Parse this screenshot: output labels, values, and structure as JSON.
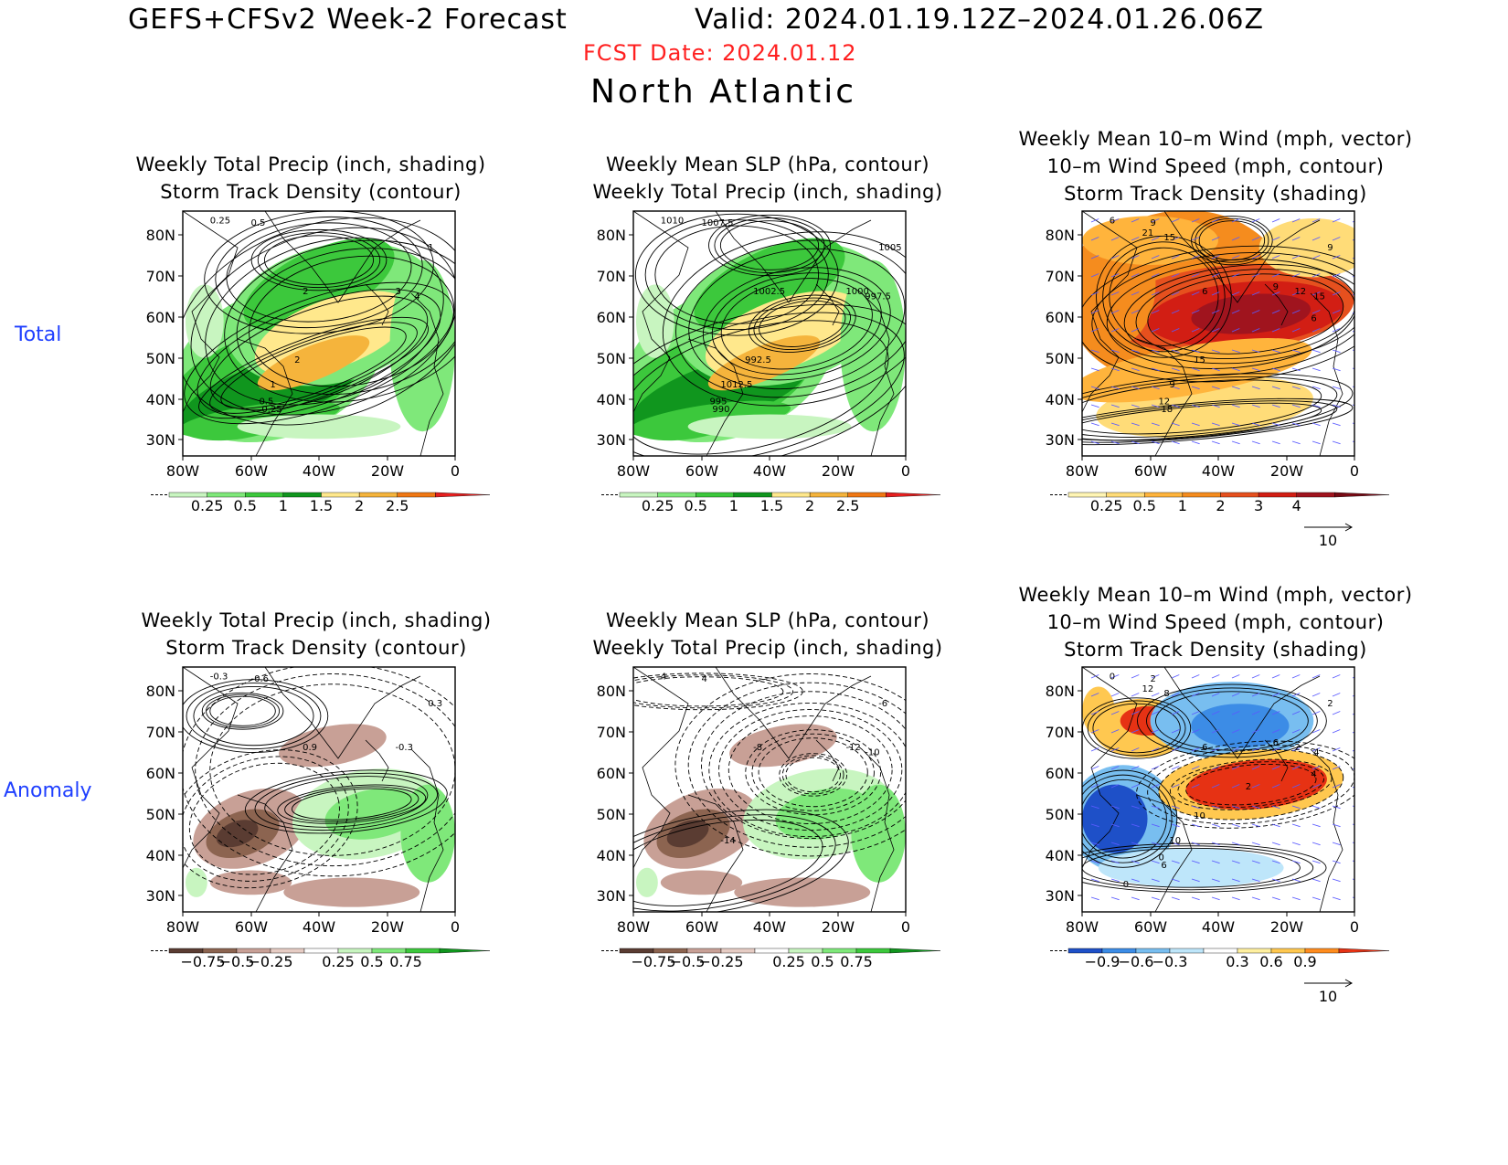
{
  "header": {
    "title": "GEFS+CFSv2 Week-2 Forecast",
    "valid": "Valid: 2024.01.19.12Z–2024.01.26.06Z",
    "fcst_date": "FCST Date: 2024.01.12",
    "region": "North Atlantic"
  },
  "rows": {
    "total": "Total",
    "anomaly": "Anomaly"
  },
  "axes": {
    "lat_ticks": [
      "80N",
      "70N",
      "60N",
      "50N",
      "40N",
      "30N"
    ],
    "lon_ticks": [
      "80W",
      "60W",
      "40W",
      "20W",
      "0"
    ]
  },
  "panels": [
    {
      "id": "total-precip",
      "title1": "Weekly Total Precip (inch, shading)",
      "title2": "Storm Track Density (contour)",
      "scheme": "precip",
      "contour_labels": [
        "0.25",
        "0.5",
        "1",
        "2",
        "3",
        "4",
        "1",
        "0.5",
        "0.25",
        "2"
      ],
      "colorbar": {
        "labels": [
          "0.25",
          "0.5",
          "1",
          "1.5",
          "2",
          "2.5"
        ],
        "colors": [
          "#c8f5c0",
          "#7fe87a",
          "#3cc83c",
          "#10961e",
          "#ffe88c",
          "#f5b43c",
          "#f07814",
          "#e61e1e"
        ]
      }
    },
    {
      "id": "total-slp",
      "title1": "Weekly Mean SLP (hPa, contour)",
      "title2": "Weekly Total Precip (inch, shading)",
      "scheme": "precip",
      "contour_labels": [
        "1010",
        "1007.5",
        "1005",
        "1002.5",
        "1000",
        "997.5",
        "1012.5",
        "995",
        "990",
        "992.5"
      ],
      "colorbar": {
        "labels": [
          "0.25",
          "0.5",
          "1",
          "1.5",
          "2",
          "2.5"
        ],
        "colors": [
          "#c8f5c0",
          "#7fe87a",
          "#3cc83c",
          "#10961e",
          "#ffe88c",
          "#f5b43c",
          "#f07814",
          "#e61e1e"
        ]
      }
    },
    {
      "id": "total-wind",
      "title0": "Weekly Mean 10–m Wind (mph, vector)",
      "title1": "10–m Wind Speed (mph, contour)",
      "title2": "Storm Track Density (shading)",
      "scheme": "storm",
      "contour_labels": [
        "6",
        "9",
        "9",
        "6",
        "12",
        "15",
        "9",
        "12",
        "18",
        "15",
        "21",
        "15",
        "9",
        "6"
      ],
      "colorbar": {
        "labels": [
          "0.25",
          "0.5",
          "1",
          "2",
          "3",
          "4"
        ],
        "colors": [
          "#fff5b4",
          "#ffdc78",
          "#ffb43c",
          "#f58c1e",
          "#e6501e",
          "#d21e14",
          "#a0141e",
          "#780a14"
        ]
      },
      "vector_ref": "10"
    },
    {
      "id": "anom-precip",
      "title1": "Weekly Total Precip (inch, shading)",
      "title2": "Storm Track Density (contour)",
      "scheme": "anom",
      "contour_labels": [
        "-0.3",
        "-0.6",
        "0.3",
        "0.9",
        "-0.3"
      ],
      "colorbar": {
        "labels": [
          "−0.75",
          "−0.5",
          "−0.25",
          "0.25",
          "0.5",
          "0.75"
        ],
        "colors": [
          "#5a3c32",
          "#8c6450",
          "#c8a096",
          "#e6ccc4",
          "#ffffff",
          "#c8f5c0",
          "#7fe87a",
          "#3cc83c",
          "#10961e"
        ]
      }
    },
    {
      "id": "anom-slp",
      "title1": "Weekly Mean SLP (hPa, contour)",
      "title2": "Weekly Total Precip (inch, shading)",
      "scheme": "anom",
      "contour_labels": [
        "4",
        "4",
        "-6",
        "-8",
        "-12",
        "-10",
        "-14"
      ],
      "colorbar": {
        "labels": [
          "−0.75",
          "−0.5",
          "−0.25",
          "0.25",
          "0.5",
          "0.75"
        ],
        "colors": [
          "#5a3c32",
          "#8c6450",
          "#c8a096",
          "#e6ccc4",
          "#ffffff",
          "#c8f5c0",
          "#7fe87a",
          "#3cc83c",
          "#10961e"
        ]
      }
    },
    {
      "id": "anom-wind",
      "title0": "Weekly Mean 10–m Wind (mph, vector)",
      "title1": "10–m Wind Speed (mph, contour)",
      "title2": "Storm Track Density (shading)",
      "scheme": "diverge",
      "contour_labels": [
        "0",
        "2",
        "2",
        "6",
        "2",
        "4",
        "10",
        "0",
        "6",
        "10",
        "12",
        "8",
        "6",
        "4",
        "2",
        "0"
      ],
      "colorbar": {
        "labels": [
          "−0.9",
          "−0.6",
          "−0.3",
          "0.3",
          "0.6",
          "0.9"
        ],
        "colors": [
          "#1e50c8",
          "#3c8ce6",
          "#78bef0",
          "#bee6fa",
          "#ffffff",
          "#fff0a0",
          "#ffc850",
          "#ff8c1e",
          "#e63214"
        ]
      },
      "vector_ref": "10"
    }
  ]
}
